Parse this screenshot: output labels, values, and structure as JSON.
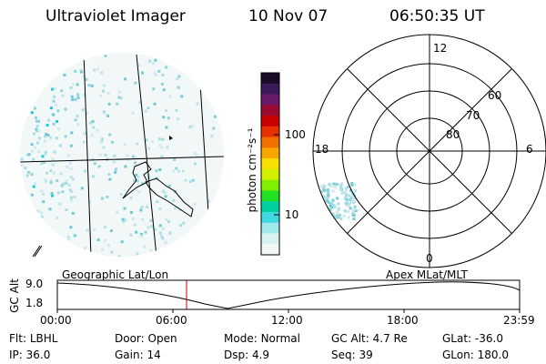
{
  "header": {
    "instrument": "Ultraviolet Imager",
    "date": "10 Nov 07",
    "time": "06:50:35 UT"
  },
  "colorbar": {
    "unit_label": "photon cm⁻²s⁻¹",
    "ticks": [
      "100",
      "10"
    ],
    "colors": [
      "#1a0a2a",
      "#3a1a5a",
      "#6a1a6a",
      "#9a0a30",
      "#c80000",
      "#e83000",
      "#f07000",
      "#f8a800",
      "#f8e000",
      "#d0f000",
      "#80f000",
      "#20e020",
      "#00d0a0",
      "#40d8e0",
      "#a0e8ec",
      "#d8f2f2",
      "#f2f8f8"
    ]
  },
  "polar_plot": {
    "mlt_labels": {
      "top": "12",
      "bottom": "0",
      "left": "18",
      "right": "6"
    },
    "lat_labels": [
      "60",
      "70",
      "80"
    ]
  },
  "timeline": {
    "y_label": "GC Alt",
    "y_ticks": [
      "9.0",
      "1.8"
    ],
    "left_title": "Geographic Lat/Lon",
    "right_title": "Apex  MLat/MLT",
    "x_ticks": [
      "00:00",
      "06:00",
      "12:00",
      "18:00",
      "23:59"
    ],
    "current_marker_color": "#c00000"
  },
  "status": {
    "row1": [
      {
        "key": "Flt:",
        "value": "LBHL"
      },
      {
        "key": "Door:",
        "value": "Open"
      },
      {
        "key": "Mode:",
        "value": "Normal"
      },
      {
        "key": "GC Alt:",
        "value": "4.7 Re"
      },
      {
        "key": "GLat:",
        "value": "-36.0"
      }
    ],
    "row2": [
      {
        "key": "IP:",
        "value": "36.0"
      },
      {
        "key": "Gain:",
        "value": "14"
      },
      {
        "key": "Dsp:",
        "value": "4.9"
      },
      {
        "key": "Seq:",
        "value": "39"
      },
      {
        "key": "GLon:",
        "value": "180.0"
      }
    ]
  }
}
